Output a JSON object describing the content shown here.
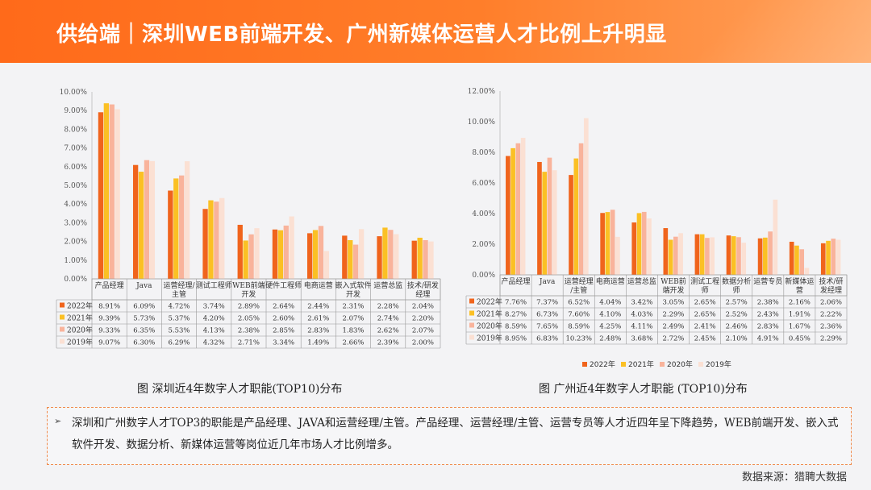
{
  "header": {
    "title": "供给端｜深圳WEB前端开发、广州新媒体运营人才比例上升明显"
  },
  "colors": {
    "2022年": "#f0641c",
    "2021年": "#fbc024",
    "2020年": "#f9b39b",
    "2019年": "#fbe0d3",
    "banner": "#ff6a1a"
  },
  "chart_data": [
    {
      "type": "bar",
      "title": "图 深圳近4年数字人才职能(TOP10)分布",
      "categories": [
        "产品经理",
        "Java",
        "运营经理/主管",
        "测试工程师",
        "WEB前端开发",
        "硬件工程师",
        "电商运营",
        "嵌入式软件开发",
        "运营总监",
        "技术/研发经理"
      ],
      "tick_labels": [
        "0.00%",
        "1.00%",
        "2.00%",
        "3.00%",
        "4.00%",
        "5.00%",
        "6.00%",
        "7.00%",
        "8.00%",
        "9.00%",
        "10.00%"
      ],
      "ylim": [
        0,
        10
      ],
      "series": [
        {
          "name": "2022年",
          "values": [
            8.91,
            6.09,
            4.72,
            3.74,
            2.89,
            2.64,
            2.44,
            2.31,
            2.28,
            2.04
          ],
          "labels": [
            "8.91%",
            "6.09%",
            "4.72%",
            "3.74%",
            "2.89%",
            "2.64%",
            "2.44%",
            "2.31%",
            "2.28%",
            "2.04%"
          ]
        },
        {
          "name": "2021年",
          "values": [
            9.39,
            5.73,
            5.37,
            4.2,
            2.05,
            2.6,
            2.61,
            2.07,
            2.74,
            2.2
          ],
          "labels": [
            "9.39%",
            "5.73%",
            "5.37%",
            "4.20%",
            "2.05%",
            "2.60%",
            "2.61%",
            "2.07%",
            "2.74%",
            "2.20%"
          ]
        },
        {
          "name": "2020年",
          "values": [
            9.33,
            6.35,
            5.53,
            4.13,
            2.38,
            2.85,
            2.83,
            1.83,
            2.62,
            2.07
          ],
          "labels": [
            "9.33%",
            "6.35%",
            "5.53%",
            "4.13%",
            "2.38%",
            "2.85%",
            "2.83%",
            "1.83%",
            "2.62%",
            "2.07%"
          ]
        },
        {
          "name": "2019年",
          "values": [
            9.07,
            6.3,
            6.29,
            4.32,
            2.71,
            3.34,
            1.49,
            2.66,
            2.39,
            2.0
          ],
          "labels": [
            "9.07%",
            "6.30%",
            "6.29%",
            "4.32%",
            "2.71%",
            "3.34%",
            "1.49%",
            "2.66%",
            "2.39%",
            "2.00%"
          ]
        }
      ],
      "legend": "table-left",
      "grid": false
    },
    {
      "type": "bar",
      "title": "图 广州近4年数字人才职能  (TOP10)分布",
      "categories": [
        "产品经理",
        "Java",
        "运营经理/主管",
        "电商运营",
        "运营总监",
        "WEB前端开发",
        "测试工程师",
        "数据分析师",
        "运营专员",
        "新媒体运营",
        "技术/研发经理"
      ],
      "tick_labels": [
        "0.00%",
        "2.00%",
        "4.00%",
        "6.00%",
        "8.00%",
        "10.00%",
        "12.00%"
      ],
      "ylim": [
        0,
        12
      ],
      "series": [
        {
          "name": "2022年",
          "values": [
            7.76,
            7.37,
            6.52,
            4.04,
            3.42,
            3.05,
            2.65,
            2.57,
            2.38,
            2.16,
            2.06
          ],
          "labels": [
            "7.76%",
            "7.37%",
            "6.52%",
            "4.04%",
            "3.42%",
            "3.05%",
            "2.65%",
            "2.57%",
            "2.38%",
            "2.16%",
            "2.06%"
          ]
        },
        {
          "name": "2021年",
          "values": [
            8.27,
            6.73,
            7.6,
            4.1,
            4.03,
            2.29,
            2.65,
            2.52,
            2.43,
            1.91,
            2.22
          ],
          "labels": [
            "8.27%",
            "6.73%",
            "7.60%",
            "4.10%",
            "4.03%",
            "2.29%",
            "2.65%",
            "2.52%",
            "2.43%",
            "1.91%",
            "2.22%"
          ]
        },
        {
          "name": "2020年",
          "values": [
            8.59,
            7.65,
            8.59,
            4.25,
            4.11,
            2.49,
            2.41,
            2.46,
            2.83,
            1.67,
            2.36
          ],
          "labels": [
            "8.59%",
            "7.65%",
            "8.59%",
            "4.25%",
            "4.11%",
            "2.49%",
            "2.41%",
            "2.46%",
            "2.83%",
            "1.67%",
            "2.36%"
          ]
        },
        {
          "name": "2019年",
          "values": [
            8.95,
            6.83,
            10.23,
            2.48,
            3.68,
            2.72,
            2.45,
            2.1,
            4.91,
            0.45,
            2.29
          ],
          "labels": [
            "8.95%",
            "6.83%",
            "10.23%",
            "2.48%",
            "3.68%",
            "2.72%",
            "2.45%",
            "2.10%",
            "4.91%",
            "0.45%",
            "2.29%"
          ]
        }
      ],
      "legend": "bottom",
      "grid": false
    }
  ],
  "note": {
    "marker": "➢",
    "text": "深圳和广州数字人才TOP3的职能是产品经理、JAVA和运营经理/主管。产品经理、运营经理/主管、运营专员等人才近四年呈下降趋势，WEB前端开发、嵌入式软件开发、数据分析、新媒体运营等岗位近几年市场人才比例增多。"
  },
  "source": "数据来源：猎聘大数据"
}
